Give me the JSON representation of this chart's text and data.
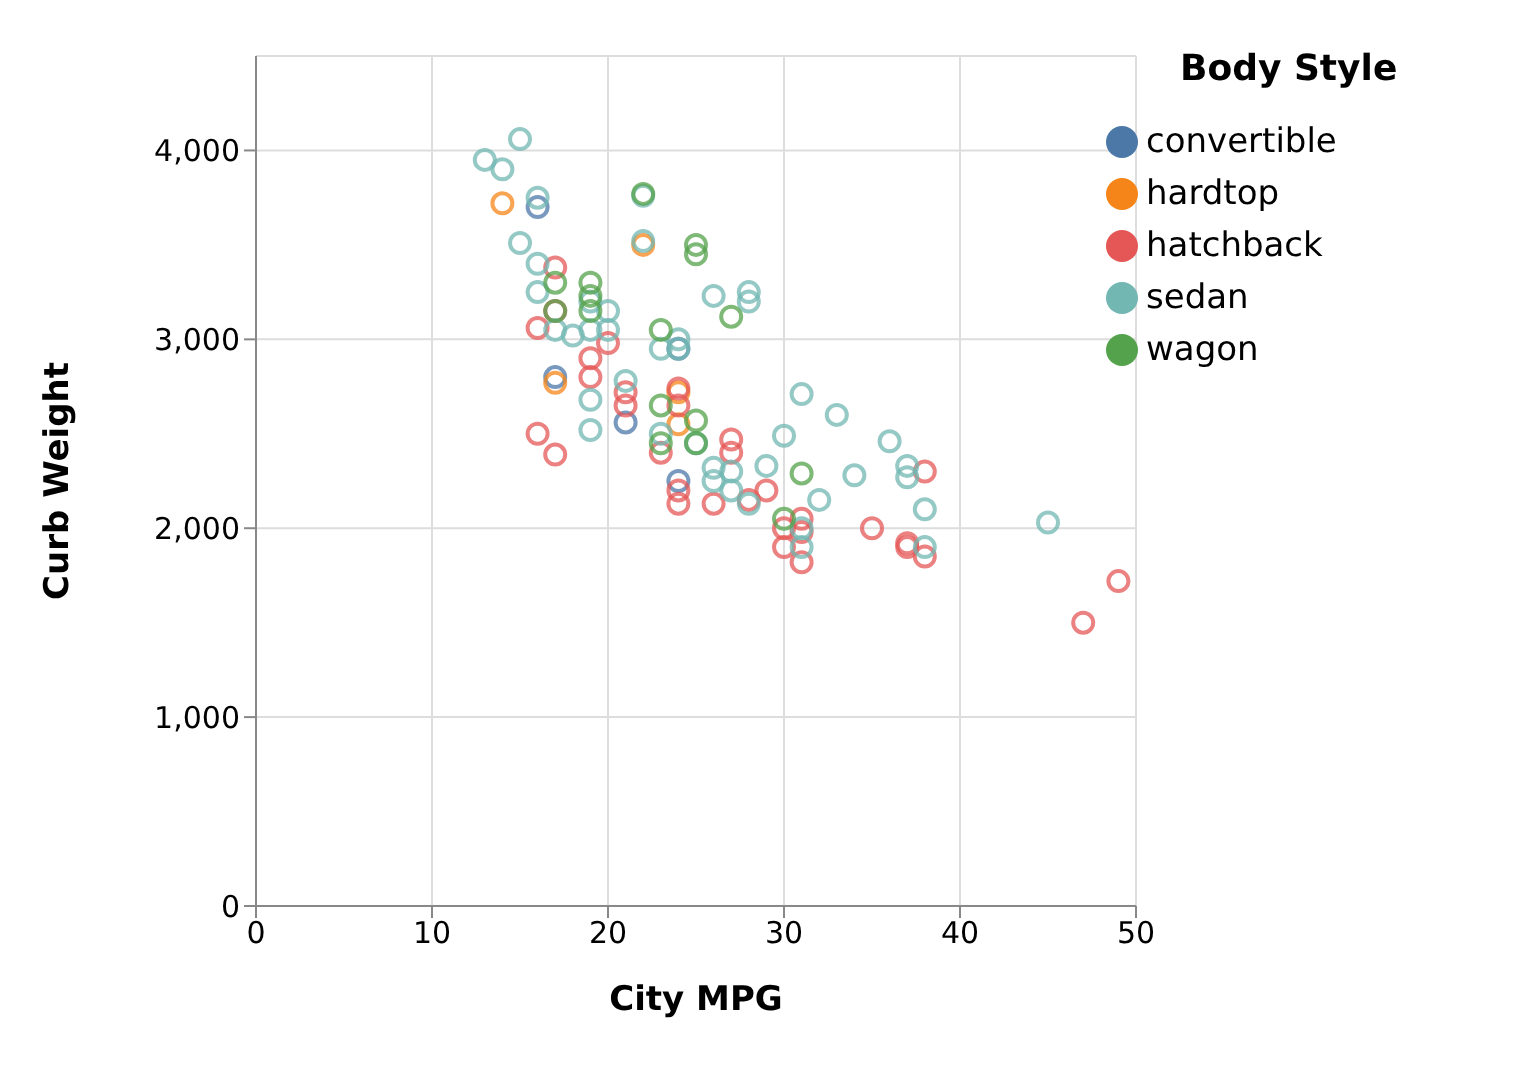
{
  "chart_data": {
    "type": "scatter",
    "xlabel": "City MPG",
    "ylabel": "Curb Weight",
    "legend_title": "Body Style",
    "xlim": [
      0,
      50
    ],
    "xticks": [
      0,
      10,
      20,
      30,
      40,
      50
    ],
    "ylim": [
      0,
      4500
    ],
    "yticks": [
      {
        "value": 0,
        "label": "0"
      },
      {
        "value": 1000,
        "label": "1,000"
      },
      {
        "value": 2000,
        "label": "2,000"
      },
      {
        "value": 3000,
        "label": "3,000"
      },
      {
        "value": 4000,
        "label": "4,000"
      }
    ],
    "grid": true,
    "legend": "top right",
    "marker": "circle",
    "series": [
      {
        "name": "convertible",
        "color": "#4c78a8",
        "x": [
          16,
          17,
          21,
          24,
          24
        ],
        "values": [
          3700,
          2800,
          2560,
          2250,
          2950
        ]
      },
      {
        "name": "hardtop",
        "color": "#f58518",
        "x": [
          14,
          17,
          22,
          24,
          24
        ],
        "values": [
          3720,
          2770,
          3500,
          2720,
          2550
        ]
      },
      {
        "name": "hatchback",
        "color": "#e45756",
        "x": [
          16,
          16,
          17,
          17,
          17,
          19,
          19,
          20,
          21,
          21,
          23,
          24,
          24,
          24,
          24,
          26,
          27,
          27,
          28,
          29,
          30,
          30,
          31,
          31,
          31,
          35,
          37,
          37,
          38,
          38,
          47,
          49
        ],
        "values": [
          3060,
          2500,
          2390,
          3380,
          3150,
          2900,
          2800,
          2980,
          2720,
          2650,
          2400,
          2740,
          2650,
          2200,
          2130,
          2130,
          2470,
          2400,
          2150,
          2200,
          2000,
          1900,
          2050,
          1980,
          1820,
          2000,
          1920,
          1900,
          2300,
          1850,
          1500,
          1720
        ]
      },
      {
        "name": "sedan",
        "color": "#72b7b2",
        "x": [
          13,
          14,
          15,
          15,
          16,
          16,
          16,
          17,
          18,
          19,
          19,
          19,
          19,
          20,
          20,
          21,
          22,
          22,
          23,
          24,
          24,
          26,
          28,
          28,
          23,
          25,
          26,
          26,
          27,
          27,
          28,
          29,
          30,
          31,
          32,
          33,
          34,
          36,
          37,
          37,
          38,
          38,
          31,
          31,
          45
        ],
        "values": [
          3950,
          3900,
          4060,
          3510,
          3750,
          3250,
          3400,
          3050,
          3020,
          3200,
          3050,
          2680,
          2520,
          3150,
          3050,
          2780,
          3760,
          3520,
          2950,
          3000,
          2950,
          3230,
          3250,
          3200,
          2500,
          2450,
          2320,
          2250,
          2300,
          2200,
          2130,
          2330,
          2490,
          2710,
          2150,
          2600,
          2280,
          2460,
          2330,
          2270,
          2100,
          1900,
          1900,
          2000,
          2030
        ]
      },
      {
        "name": "wagon",
        "color": "#54a24b",
        "x": [
          17,
          17,
          19,
          19,
          19,
          22,
          23,
          23,
          23,
          25,
          25,
          25,
          25,
          27,
          31,
          30
        ],
        "values": [
          3300,
          3150,
          3300,
          3230,
          3150,
          3770,
          3050,
          2650,
          2450,
          3500,
          3450,
          2570,
          2450,
          3120,
          2290,
          2050
        ]
      }
    ]
  }
}
